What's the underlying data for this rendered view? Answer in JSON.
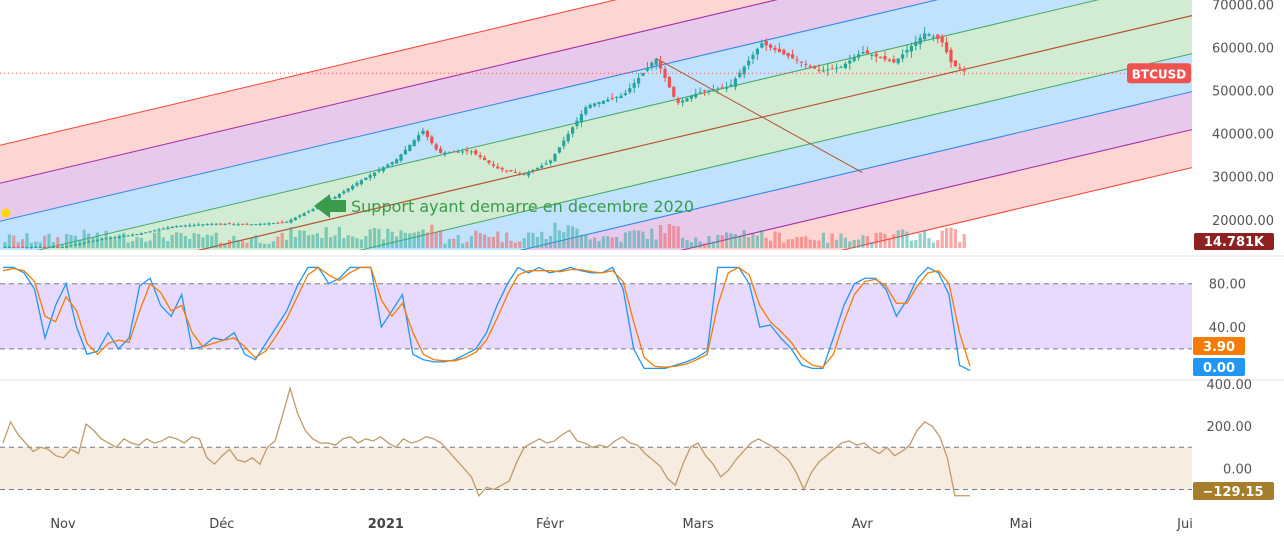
{
  "symbol": "BTCUSD",
  "x_axis": {
    "labels": [
      "Nov",
      "Déc",
      "2021",
      "Févr",
      "Mars",
      "Avr",
      "Mai",
      "Jui"
    ]
  },
  "annotation": {
    "text": "Support ayant demarre en decembre 2020",
    "color": "#3a9b4a"
  },
  "chart_data": [
    {
      "panel": "price",
      "type": "candlestick",
      "symbol": "BTCUSD",
      "y_ticks": [
        "70000.00",
        "60000.00",
        "50000.00",
        "40000.00",
        "30000.00",
        "20000.00"
      ],
      "ylim": [
        13000,
        71000
      ],
      "current_price_label": "BTCUSD",
      "volume_label": "14.781K",
      "colors": {
        "up": "#26a69a",
        "down": "#ef5350",
        "last_price_badge": "#ef5350",
        "volume_badge": "#8e2121"
      },
      "close_series": [
        {
          "t": "2020-11-01",
          "close": 13700
        },
        {
          "t": "2020-11-08",
          "close": 15500
        },
        {
          "t": "2020-11-15",
          "close": 16700
        },
        {
          "t": "2020-11-22",
          "close": 18500
        },
        {
          "t": "2020-11-29",
          "close": 19100
        },
        {
          "t": "2020-12-06",
          "close": 18900
        },
        {
          "t": "2020-12-13",
          "close": 19400
        },
        {
          "t": "2020-12-20",
          "close": 23500
        },
        {
          "t": "2020-12-27",
          "close": 28900
        },
        {
          "t": "2021-01-03",
          "close": 34000
        },
        {
          "t": "2021-01-08",
          "close": 40700
        },
        {
          "t": "2021-01-11",
          "close": 35500
        },
        {
          "t": "2021-01-17",
          "close": 36000
        },
        {
          "t": "2021-01-22",
          "close": 32000
        },
        {
          "t": "2021-01-27",
          "close": 30500
        },
        {
          "t": "2021-02-01",
          "close": 33500
        },
        {
          "t": "2021-02-08",
          "close": 46500
        },
        {
          "t": "2021-02-15",
          "close": 49000
        },
        {
          "t": "2021-02-21",
          "close": 57500
        },
        {
          "t": "2021-02-25",
          "close": 47000
        },
        {
          "t": "2021-03-01",
          "close": 49500
        },
        {
          "t": "2021-03-07",
          "close": 51000
        },
        {
          "t": "2021-03-13",
          "close": 61000
        },
        {
          "t": "2021-03-17",
          "close": 58500
        },
        {
          "t": "2021-03-24",
          "close": 54500
        },
        {
          "t": "2021-03-28",
          "close": 55500
        },
        {
          "t": "2021-04-01",
          "close": 59000
        },
        {
          "t": "2021-04-07",
          "close": 56500
        },
        {
          "t": "2021-04-13",
          "close": 63500
        },
        {
          "t": "2021-04-16",
          "close": 61500
        },
        {
          "t": "2021-04-18",
          "close": 56000
        },
        {
          "t": "2021-04-21",
          "close": 54000
        }
      ],
      "channel": {
        "type": "pitchfork",
        "median_from": {
          "t": "2020-11-01",
          "price": 5500
        },
        "median_to": {
          "t": "2021-06-01",
          "price": 67000
        },
        "band_colors": [
          "#4caf50",
          "#2196f3",
          "#9c27b0",
          "#f44336"
        ]
      },
      "trend_line": {
        "from": {
          "t": "2021-02-21",
          "price": 57500
        },
        "to": {
          "t": "2021-04-01",
          "price": 31000
        }
      }
    },
    {
      "panel": "stochastic",
      "type": "line",
      "y_ticks": [
        "80.00",
        "40.00"
      ],
      "bands": [
        20,
        80
      ],
      "ylim": [
        -5,
        100
      ],
      "series": [
        {
          "color": "#2196f3",
          "label": "0.00",
          "values": [
            95,
            95,
            90,
            75,
            30,
            60,
            80,
            40,
            15,
            18,
            35,
            20,
            30,
            78,
            85,
            60,
            50,
            70,
            20,
            22,
            30,
            28,
            35,
            15,
            10,
            25,
            40,
            55,
            78,
            95,
            95,
            80,
            85,
            95,
            95,
            95,
            40,
            55,
            70,
            15,
            10,
            8,
            8,
            10,
            15,
            20,
            35,
            60,
            80,
            95,
            90,
            95,
            90,
            92,
            95,
            92,
            90,
            90,
            95,
            75,
            20,
            2,
            2,
            2,
            5,
            8,
            12,
            18,
            95,
            95,
            95,
            80,
            40,
            42,
            30,
            20,
            5,
            2,
            2,
            30,
            60,
            80,
            85,
            85,
            75,
            50,
            65,
            85,
            95,
            90,
            70,
            5,
            0
          ]
        },
        {
          "color": "#f57c00",
          "label": "3.90",
          "values": [
            92,
            94,
            92,
            82,
            50,
            45,
            68,
            55,
            25,
            15,
            25,
            28,
            26,
            55,
            80,
            72,
            55,
            60,
            35,
            22,
            25,
            28,
            30,
            22,
            12,
            18,
            32,
            48,
            68,
            88,
            95,
            88,
            83,
            90,
            95,
            95,
            65,
            50,
            62,
            35,
            15,
            10,
            9,
            9,
            12,
            17,
            28,
            48,
            70,
            88,
            92,
            92,
            92,
            91,
            93,
            93,
            91,
            90,
            92,
            82,
            45,
            12,
            4,
            3,
            4,
            6,
            10,
            15,
            60,
            90,
            95,
            88,
            60,
            45,
            36,
            26,
            12,
            5,
            3,
            15,
            45,
            70,
            82,
            84,
            78,
            62,
            62,
            78,
            90,
            92,
            80,
            35,
            4
          ]
        }
      ]
    },
    {
      "panel": "cci",
      "type": "line",
      "y_ticks": [
        "400.00",
        "200.00",
        "0.00"
      ],
      "bands": [
        -100,
        100
      ],
      "ylim": [
        -150,
        400
      ],
      "series": [
        {
          "color": "#c19a6b",
          "label": "−129.15",
          "values": [
            120,
            220,
            160,
            120,
            80,
            100,
            90,
            60,
            50,
            90,
            70,
            210,
            180,
            140,
            120,
            100,
            140,
            120,
            110,
            140,
            120,
            130,
            150,
            140,
            120,
            150,
            140,
            50,
            20,
            60,
            90,
            40,
            30,
            50,
            20,
            100,
            130,
            250,
            380,
            260,
            180,
            140,
            120,
            120,
            110,
            140,
            150,
            120,
            140,
            130,
            150,
            120,
            100,
            140,
            120,
            130,
            150,
            140,
            120,
            80,
            40,
            0,
            -40,
            -130,
            -90,
            -100,
            -80,
            -60,
            30,
            100,
            120,
            140,
            120,
            130,
            160,
            180,
            130,
            120,
            100,
            110,
            100,
            130,
            150,
            120,
            110,
            70,
            40,
            10,
            -50,
            -80,
            20,
            100,
            120,
            60,
            20,
            -40,
            -10,
            40,
            80,
            120,
            140,
            120,
            100,
            70,
            40,
            -20,
            -100,
            -20,
            30,
            60,
            90,
            120,
            130,
            110,
            120,
            90,
            70,
            100,
            60,
            80,
            110,
            180,
            220,
            200,
            150,
            50,
            -130,
            -130,
            -130
          ]
        }
      ]
    }
  ]
}
